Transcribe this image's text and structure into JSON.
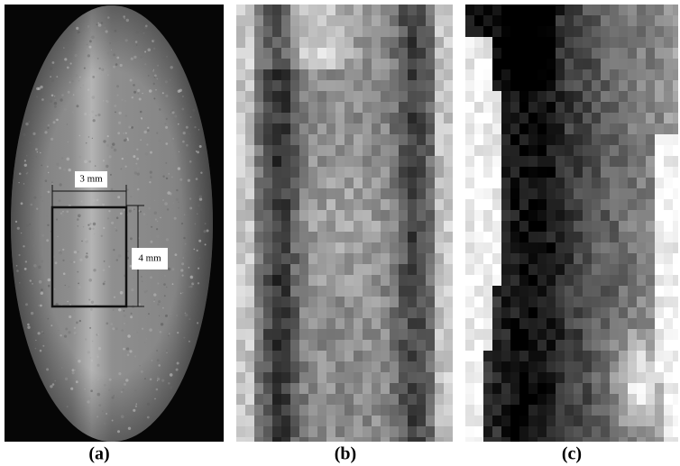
{
  "panels": {
    "a": {
      "label": "(a)",
      "width_annotation": "3 mm",
      "height_annotation": "4 mm"
    },
    "b": {
      "label": "(b)"
    },
    "c": {
      "label": "(c)"
    }
  }
}
